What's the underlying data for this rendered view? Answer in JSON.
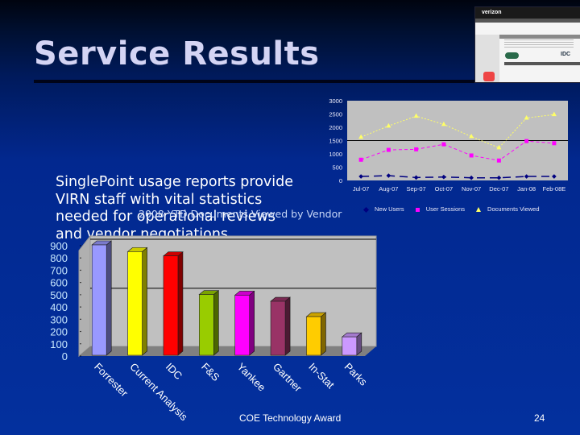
{
  "slide": {
    "title": "Service Results",
    "bullet": "SinglePoint usage reports provide VIRN staff with vital statistics needed for operational reviews and vendor negotiations",
    "bullet_lines": [
      "SinglePoint usage reports provide",
      "VIRN staff with vital statistics",
      "needed for operational reviews",
      "and vendor negotiations"
    ],
    "footer": "COE Technology Award",
    "page_number": "24",
    "thumbnail": {
      "logo_text": "verizon",
      "brand_label": "IDC"
    }
  },
  "colors": {
    "background_top": "#00040f",
    "background_bottom": "#03309e",
    "title": "#d4d4f4",
    "plot_bg": "#c0c0c0"
  },
  "chart_data": [
    {
      "type": "line",
      "title": "",
      "xlabel": "",
      "ylabel": "",
      "categories": [
        "Jul-07",
        "Aug-07",
        "Sep-07",
        "Oct-07",
        "Nov-07",
        "Dec-07",
        "Jan-08",
        "Feb-08E"
      ],
      "ylim": [
        0,
        3000
      ],
      "yticks": [
        0,
        500,
        1000,
        1500,
        2000,
        2500,
        3000
      ],
      "grid": "single line at 1500",
      "legend_position": "bottom",
      "series": [
        {
          "name": "New Users",
          "color": "#000080",
          "marker": "diamond",
          "values": [
            150,
            180,
            110,
            130,
            100,
            100,
            150,
            150
          ]
        },
        {
          "name": "User Sessions",
          "color": "#ff00ff",
          "marker": "square",
          "values": [
            780,
            1150,
            1170,
            1360,
            940,
            750,
            1480,
            1400
          ]
        },
        {
          "name": "Documents Viewed",
          "color": "#ffff66",
          "marker": "triangle",
          "values": [
            1630,
            2050,
            2420,
            2110,
            1650,
            1230,
            2350,
            2480
          ]
        }
      ]
    },
    {
      "type": "bar",
      "title": "2008 YTD Documents Viewed by Vendor",
      "xlabel": "",
      "ylabel": "",
      "categories": [
        "Forrester",
        "Current Analysis",
        "IDC",
        "F&S",
        "Yankee",
        "Gartner",
        "In-Stat",
        "Parks"
      ],
      "values": [
        900,
        845,
        810,
        495,
        490,
        440,
        315,
        150
      ],
      "colors": [
        "#9999ff",
        "#ffff00",
        "#ff0000",
        "#99cc00",
        "#ff00ff",
        "#993366",
        "#ffcc00",
        "#cc99ff"
      ],
      "ylim": [
        0,
        900
      ],
      "yticks": [
        0,
        100,
        200,
        300,
        400,
        500,
        600,
        700,
        800,
        900
      ],
      "grid": "lines at 500 and 900",
      "style": "3d-column"
    }
  ]
}
